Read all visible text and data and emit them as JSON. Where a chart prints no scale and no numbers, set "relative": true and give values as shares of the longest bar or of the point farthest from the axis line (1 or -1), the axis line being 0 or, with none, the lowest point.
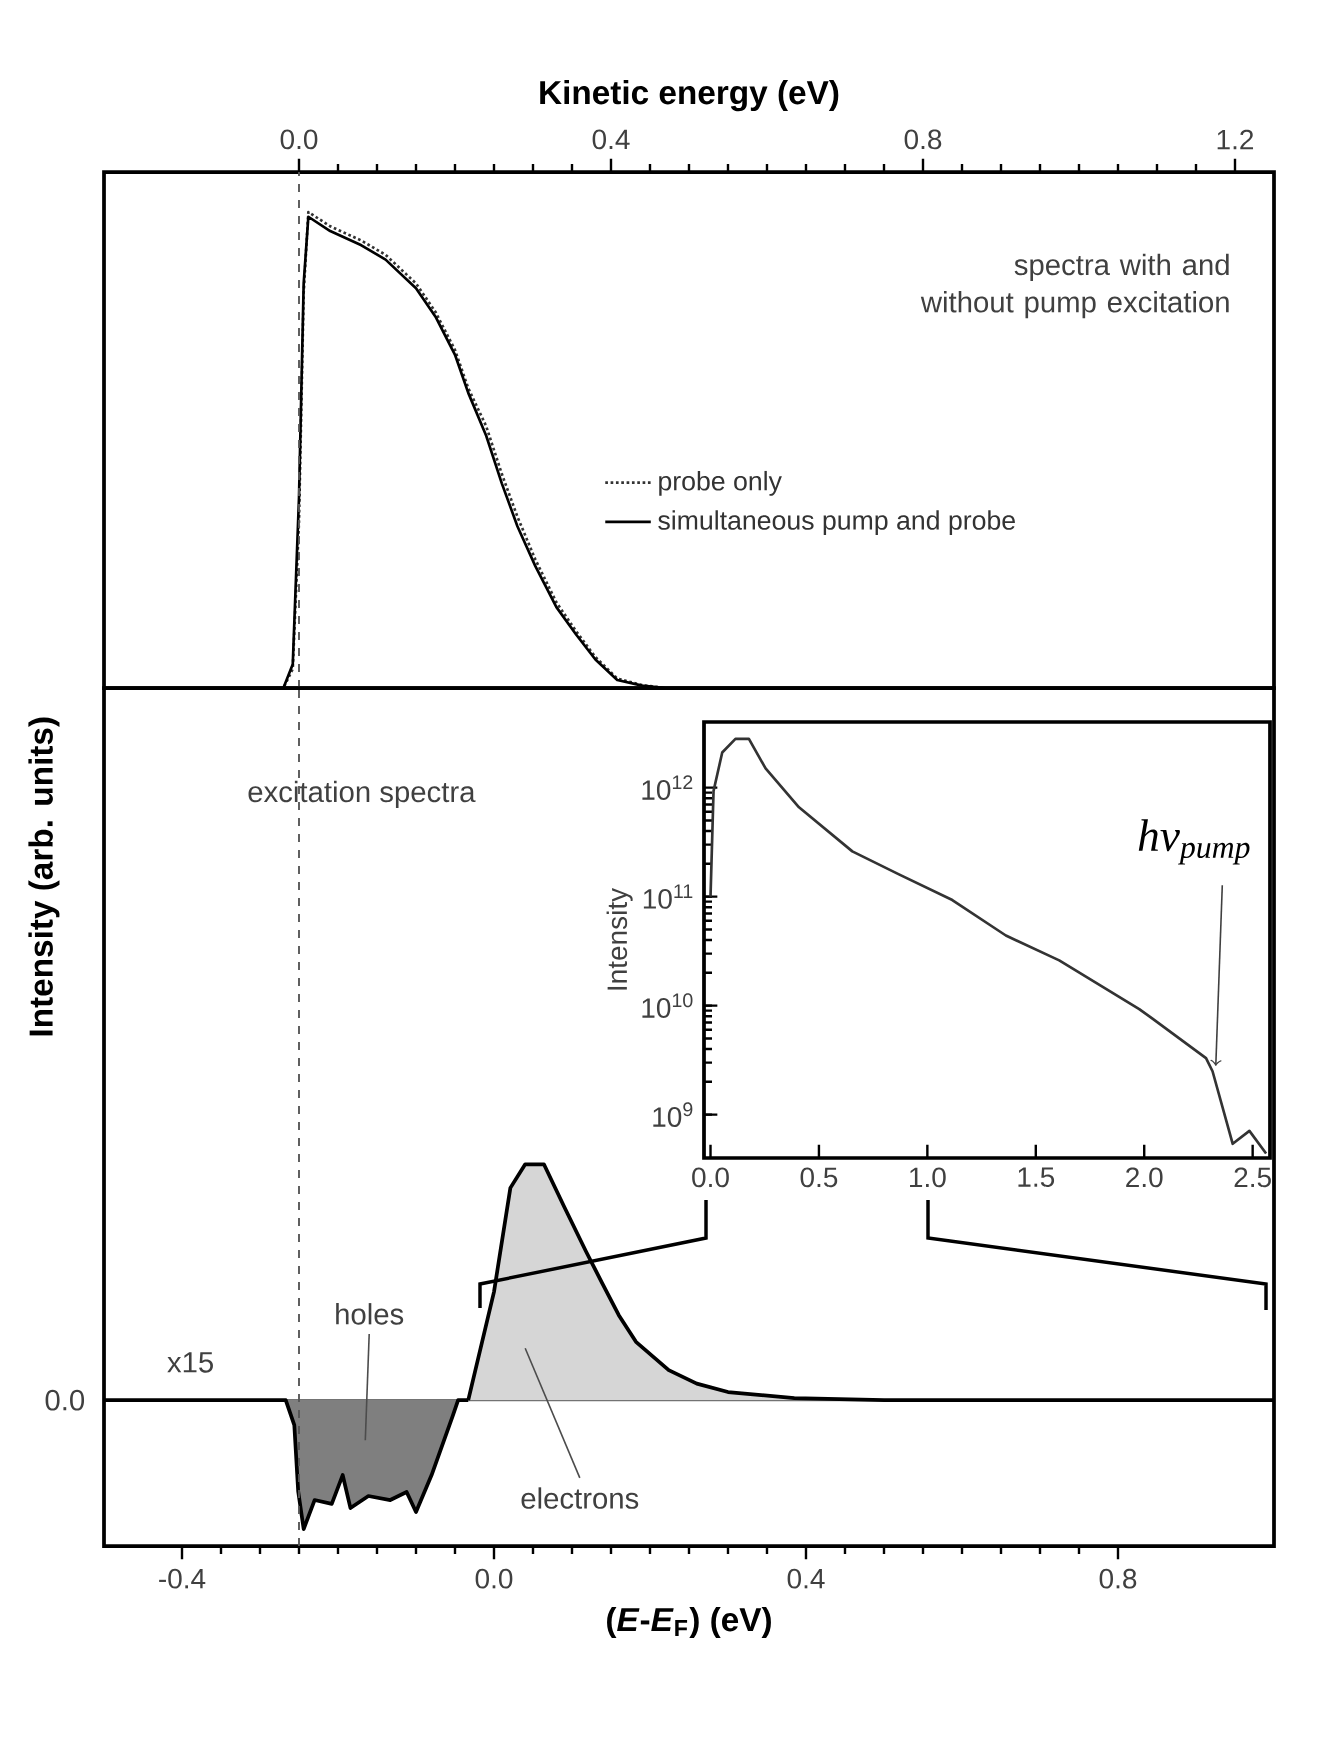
{
  "chart_data": [
    {
      "type": "line",
      "relative": true,
      "xlabel": "Kinetic energy (eV)",
      "xlim": [
        -0.25,
        1.25
      ],
      "xticks": [
        {
          "value": 0,
          "label": "0.0"
        },
        0.4,
        0.8,
        1.2
      ],
      "legend": "right",
      "x": [
        -0.25,
        -0.02,
        -0.008,
        0.0,
        0.006,
        0.012,
        0.04,
        0.08,
        0.111,
        0.15,
        0.175,
        0.2,
        0.217,
        0.24,
        0.26,
        0.28,
        0.303,
        0.33,
        0.355,
        0.38,
        0.408,
        0.44,
        0.47,
        0.6,
        0.8,
        1.0,
        1.25
      ],
      "series": [
        {
          "name": "probe only",
          "color": "#333333",
          "line_style": "dotted",
          "values": [
            0,
            0,
            0.04,
            0.35,
            0.83,
            1.0,
            0.97,
            0.94,
            0.91,
            0.85,
            0.79,
            0.71,
            0.63,
            0.55,
            0.45,
            0.36,
            0.27,
            0.18,
            0.12,
            0.065,
            0.02,
            0.006,
            0,
            0,
            0,
            0,
            0
          ]
        },
        {
          "name": "simultaneous pump and probe",
          "color": "#000000",
          "line_style": "solid",
          "values": [
            0,
            0,
            0.05,
            0.4,
            0.85,
            0.99,
            0.96,
            0.93,
            0.9,
            0.84,
            0.78,
            0.7,
            0.62,
            0.53,
            0.43,
            0.34,
            0.256,
            0.17,
            0.113,
            0.06,
            0.017,
            0.005,
            0,
            0,
            0,
            0,
            0
          ]
        }
      ],
      "ref_lines": [
        {
          "axis": "x",
          "value": 0,
          "line_style": "dashed",
          "color": "#555555"
        }
      ],
      "annotations": [
        "spectra with and without pump excitation"
      ]
    },
    {
      "type": "area",
      "relative": true,
      "xlabel": "(*E*-*E*$_{F}$) (eV)",
      "ylabel": "Intensity (arb. units)",
      "xlim": [
        -0.5,
        1.0
      ],
      "xticks": [
        -0.4,
        {
          "value": 0,
          "label": "0.0"
        },
        0.4,
        0.8
      ],
      "series": [
        {
          "name": "holes",
          "color": "#7f7f7f",
          "x": [
            -0.5,
            -0.4,
            -0.3,
            -0.267,
            -0.256,
            -0.251,
            -0.244,
            -0.23,
            -0.208,
            -0.194,
            -0.184,
            -0.161,
            -0.133,
            -0.112,
            -0.1,
            -0.08,
            -0.053,
            -0.046,
            -0.033
          ],
          "values": [
            0,
            0,
            0,
            0,
            -0.106,
            -0.388,
            -0.547,
            -0.424,
            -0.44,
            -0.318,
            -0.458,
            -0.407,
            -0.424,
            -0.39,
            -0.475,
            -0.318,
            -0.068,
            0,
            0
          ]
        },
        {
          "name": "electrons",
          "color": "#d6d6d6",
          "x": [
            -0.033,
            0.0,
            0.021,
            0.04,
            0.064,
            0.09,
            0.118,
            0.139,
            0.16,
            0.182,
            0.224,
            0.26,
            0.3,
            0.385,
            0.5,
            0.7,
            1.0
          ],
          "values": [
            0,
            0.459,
            0.9,
            1.0,
            1.0,
            0.82,
            0.63,
            0.494,
            0.36,
            0.247,
            0.127,
            0.07,
            0.034,
            0.008,
            0,
            0,
            0
          ]
        }
      ],
      "ref_lines": [
        {
          "axis": "x",
          "value": -0.25,
          "line_style": "dashed",
          "color": "#555555"
        }
      ],
      "annotations": [
        "excitation spectra",
        "x15",
        "0.0"
      ]
    },
    {
      "type": "line",
      "log": "y",
      "ylabel": "Intensity",
      "xlim": [
        -0.03,
        2.58
      ],
      "ylim": [
        400000000,
        4000000000000
      ],
      "xticks": [
        {
          "value": 0,
          "label": "0.0"
        },
        0.5,
        {
          "value": 1,
          "label": "1.0"
        },
        1.5,
        {
          "value": 2,
          "label": "2.0"
        },
        2.5
      ],
      "yticks": [
        {
          "value": 1000000000,
          "label": "10$^{9}$"
        },
        {
          "value": 10000000000,
          "label": "10$^{10}$"
        },
        {
          "value": 100000000000,
          "label": "10$^{11}$"
        },
        {
          "value": 1000000000000,
          "label": "10$^{12}$"
        }
      ],
      "x": [
        0.0,
        0.014,
        0.054,
        0.115,
        0.177,
        0.254,
        0.408,
        0.654,
        0.869,
        1.115,
        1.362,
        1.608,
        1.977,
        2.038,
        2.285,
        2.315,
        2.408,
        2.485,
        2.562
      ],
      "series": [
        {
          "color": "#333333",
          "values": [
            100000000000,
            930000000000,
            2100000000000,
            2800000000000,
            2800000000000,
            1500000000000,
            660000000000,
            260000000000,
            160000000000,
            93000000000,
            44000000000,
            26000000000,
            9300000000,
            7600000000,
            3300000000,
            2500000000,
            540000000,
            710000000,
            440000000
          ]
        }
      ],
      "annotations": [
        {
          "text": "hν$_{pump}$",
          "x": 2.33,
          "y": 2800000000
        }
      ]
    }
  ]
}
